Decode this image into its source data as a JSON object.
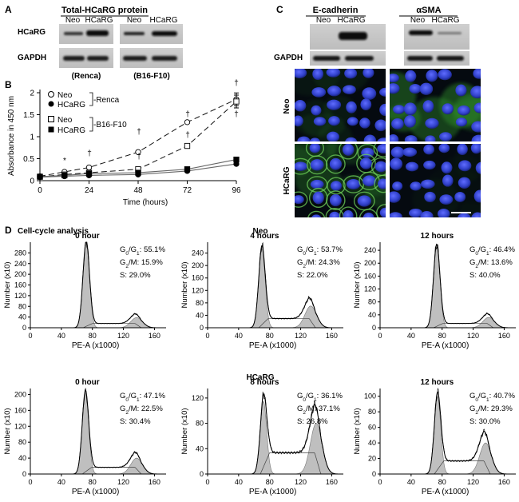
{
  "panel_letters": {
    "a": "A",
    "b": "B",
    "c": "C",
    "d": "D"
  },
  "panel_a": {
    "title": "Total-HCaRG protein",
    "lanes": [
      "Neo",
      "HCaRG"
    ],
    "rows": [
      "HCaRG",
      "GAPDH"
    ],
    "cell_lines": [
      "(Renca)",
      "(B16-F10)"
    ]
  },
  "panel_b": {
    "legend": {
      "neo": "Neo",
      "hcarg": "HCaRG",
      "renca": "-Renca",
      "b16": "-B16-F10"
    },
    "annotations": {
      "star": "*",
      "dagger": "†"
    }
  },
  "panel_c": {
    "markers": [
      "E-cadherin",
      "αSMA"
    ],
    "lanes": [
      "Neo",
      "HCaRG"
    ],
    "loading": "GAPDH",
    "row_labels": [
      "Neo",
      "HCaRG"
    ]
  },
  "panel_d": {
    "title": "Cell-cycle analysis",
    "group_neo": "Neo",
    "group_hcarg": "HCaRG",
    "hist": [
      {
        "time": "0 hour",
        "g1": "55.1%",
        "g2m": "15.9%",
        "s": "29.0%"
      },
      {
        "time": "4 hours",
        "g1": "53.7%",
        "g2m": "24.3%",
        "s": "22.0%"
      },
      {
        "time": "12 hours",
        "g1": "46.4%",
        "g2m": "13.6%",
        "s": "40.0%"
      },
      {
        "time": "0 hour",
        "g1": "47.1%",
        "g2m": "22.5%",
        "s": "30.4%"
      },
      {
        "time": "8 hours",
        "g1": "36.1%",
        "g2m": "37.1%",
        "s": "26.8%"
      },
      {
        "time": "12 hours",
        "g1": "40.7%",
        "g2m": "29.3%",
        "s": "30.0%"
      }
    ],
    "prefix_g1": "G",
    "sub_g0": "0",
    "sub_g1": "1",
    "sep_g1": "/G",
    "prefix_g2": "G",
    "sub_g2": "2",
    "suffix_g2m": "/M: ",
    "prefix_s": "S: ",
    "colon": ": "
  },
  "chart_data": [
    {
      "type": "line",
      "xlabel": "Time (hours)",
      "ylabel": "Absorbance in 450 nm",
      "x": [
        0,
        12,
        24,
        48,
        72,
        96
      ],
      "xticks": [
        "0",
        "24",
        "48",
        "72",
        "96"
      ],
      "yticks": [
        "0",
        "0.5",
        "1",
        "1.5",
        "2"
      ],
      "xlim": [
        0,
        96
      ],
      "ylim": [
        0,
        2
      ],
      "series": [
        {
          "name": "Neo -Renca",
          "marker": "open-circle",
          "values": [
            0.1,
            0.2,
            0.3,
            0.65,
            1.33,
            1.85
          ]
        },
        {
          "name": "HCaRG -Renca",
          "marker": "filled-circle",
          "values": [
            0.08,
            0.1,
            0.12,
            0.14,
            0.22,
            0.38
          ]
        },
        {
          "name": "Neo -B16-F10",
          "marker": "open-square",
          "values": [
            0.09,
            0.14,
            0.18,
            0.26,
            0.79,
            1.8
          ]
        },
        {
          "name": "HCaRG -B16-F10",
          "marker": "filled-square",
          "values": [
            0.09,
            0.12,
            0.16,
            0.18,
            0.26,
            0.48
          ]
        }
      ]
    },
    {
      "type": "area",
      "xlabel": "PE-A (x1000)",
      "ylabel": "Number (x10)",
      "xticks": [
        "0",
        "40",
        "80",
        "120",
        "160"
      ],
      "xlim": [
        0,
        175
      ],
      "histograms": [
        {
          "yticks": [
            "0",
            "40",
            "80",
            "120",
            "160",
            "200",
            "240",
            "280"
          ],
          "ymax": 320,
          "g1_peak": 72,
          "g1_height": 320,
          "g2_peak": 137,
          "g2_height": 38
        },
        {
          "yticks": [
            "0",
            "40",
            "80",
            "120",
            "160",
            "200",
            "240"
          ],
          "ymax": 275,
          "g1_peak": 70,
          "g1_height": 255,
          "g2_peak": 133,
          "g2_height": 70
        },
        {
          "yticks": [
            "0",
            "40",
            "80",
            "120",
            "160",
            "200",
            "240"
          ],
          "ymax": 265,
          "g1_peak": 73,
          "g1_height": 255,
          "g2_peak": 140,
          "g2_height": 32
        },
        {
          "yticks": [
            "0",
            "40",
            "80",
            "120",
            "160",
            "200"
          ],
          "ymax": 215,
          "g1_peak": 71,
          "g1_height": 205,
          "g2_peak": 137,
          "g2_height": 40
        },
        {
          "yticks": [
            "0",
            "40",
            "80",
            "120"
          ],
          "ymax": 135,
          "g1_peak": 72,
          "g1_height": 115,
          "g2_peak": 140,
          "g2_height": 80
        },
        {
          "yticks": [
            "0",
            "20",
            "40",
            "60",
            "80",
            "100"
          ],
          "ymax": 110,
          "g1_peak": 74,
          "g1_height": 100,
          "g2_peak": 136,
          "g2_height": 40
        }
      ]
    }
  ]
}
